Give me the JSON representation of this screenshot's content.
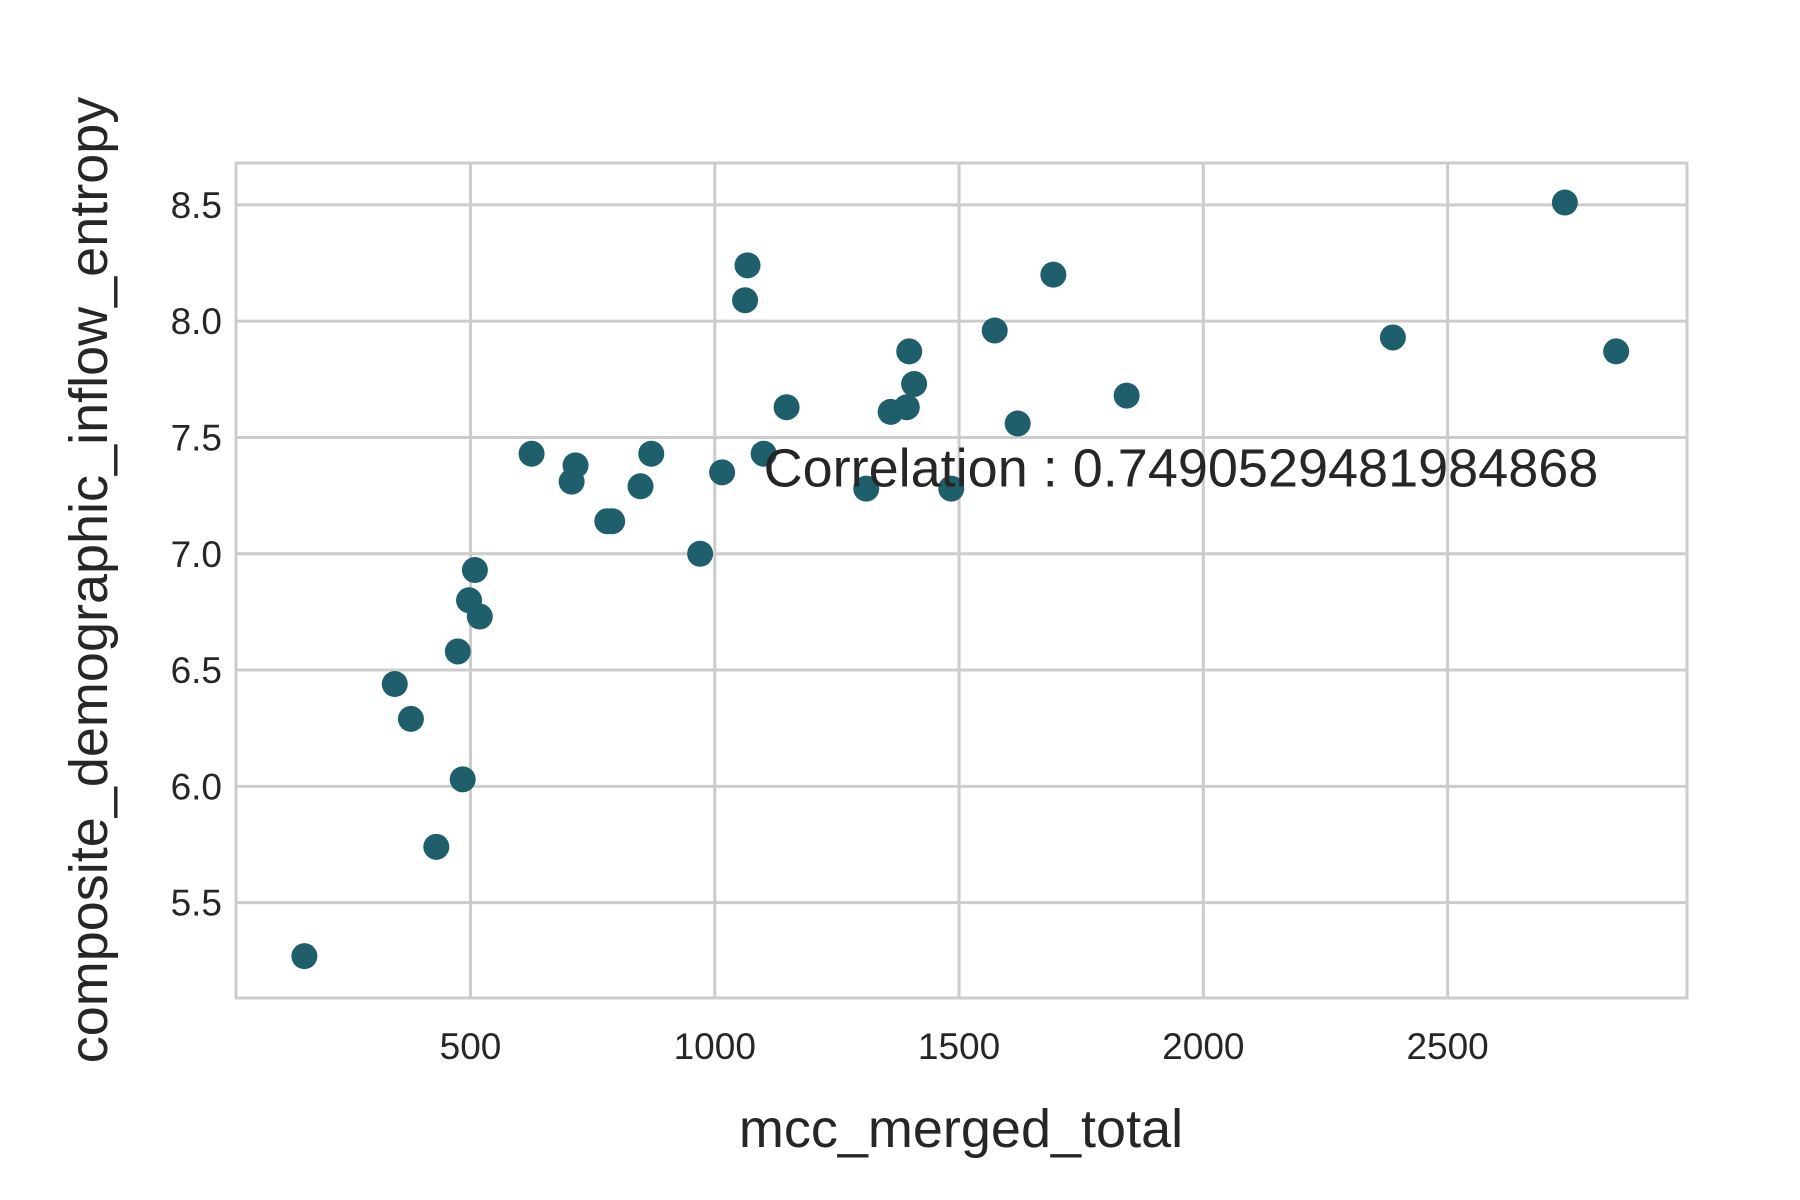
{
  "chart_data": {
    "type": "scatter",
    "title": "",
    "xlabel": "mcc_merged_total",
    "ylabel": "composite_demographic_inflow_entropy",
    "xlim": [
      20,
      2990
    ],
    "ylim": [
      5.09,
      8.68
    ],
    "xticks": [
      500,
      1000,
      1500,
      2000,
      2500
    ],
    "xtick_labels": [
      "500",
      "1000",
      "1500",
      "2000",
      "2500"
    ],
    "yticks": [
      5.5,
      6.0,
      6.5,
      7.0,
      7.5,
      8.0,
      8.5
    ],
    "ytick_labels": [
      "5.5",
      "6.0",
      "6.5",
      "7.0",
      "7.5",
      "8.0",
      "8.5"
    ],
    "grid": true,
    "legend": "none",
    "marker_color": "#1f5f6b",
    "annotation": {
      "text": "Correlation : 0.7490529481984868",
      "x": 1100,
      "y": 7.37
    },
    "points": [
      {
        "x": 160,
        "y": 5.27
      },
      {
        "x": 345,
        "y": 6.44
      },
      {
        "x": 378,
        "y": 6.29
      },
      {
        "x": 430,
        "y": 5.74
      },
      {
        "x": 474,
        "y": 6.58
      },
      {
        "x": 484,
        "y": 6.03
      },
      {
        "x": 497,
        "y": 6.8
      },
      {
        "x": 509,
        "y": 6.93
      },
      {
        "x": 519,
        "y": 6.73
      },
      {
        "x": 625,
        "y": 7.43
      },
      {
        "x": 707,
        "y": 7.31
      },
      {
        "x": 715,
        "y": 7.38
      },
      {
        "x": 780,
        "y": 7.14
      },
      {
        "x": 790,
        "y": 7.14
      },
      {
        "x": 848,
        "y": 7.29
      },
      {
        "x": 870,
        "y": 7.43
      },
      {
        "x": 970,
        "y": 7.0
      },
      {
        "x": 1015,
        "y": 7.35
      },
      {
        "x": 1062,
        "y": 8.09
      },
      {
        "x": 1067,
        "y": 8.24
      },
      {
        "x": 1100,
        "y": 7.43
      },
      {
        "x": 1147,
        "y": 7.63
      },
      {
        "x": 1310,
        "y": 7.28
      },
      {
        "x": 1360,
        "y": 7.61
      },
      {
        "x": 1393,
        "y": 7.63
      },
      {
        "x": 1398,
        "y": 7.87
      },
      {
        "x": 1408,
        "y": 7.73
      },
      {
        "x": 1484,
        "y": 7.28
      },
      {
        "x": 1573,
        "y": 7.96
      },
      {
        "x": 1620,
        "y": 7.56
      },
      {
        "x": 1693,
        "y": 8.2
      },
      {
        "x": 1843,
        "y": 7.68
      },
      {
        "x": 2388,
        "y": 7.93
      },
      {
        "x": 2740,
        "y": 8.51
      },
      {
        "x": 2845,
        "y": 7.87
      }
    ]
  }
}
